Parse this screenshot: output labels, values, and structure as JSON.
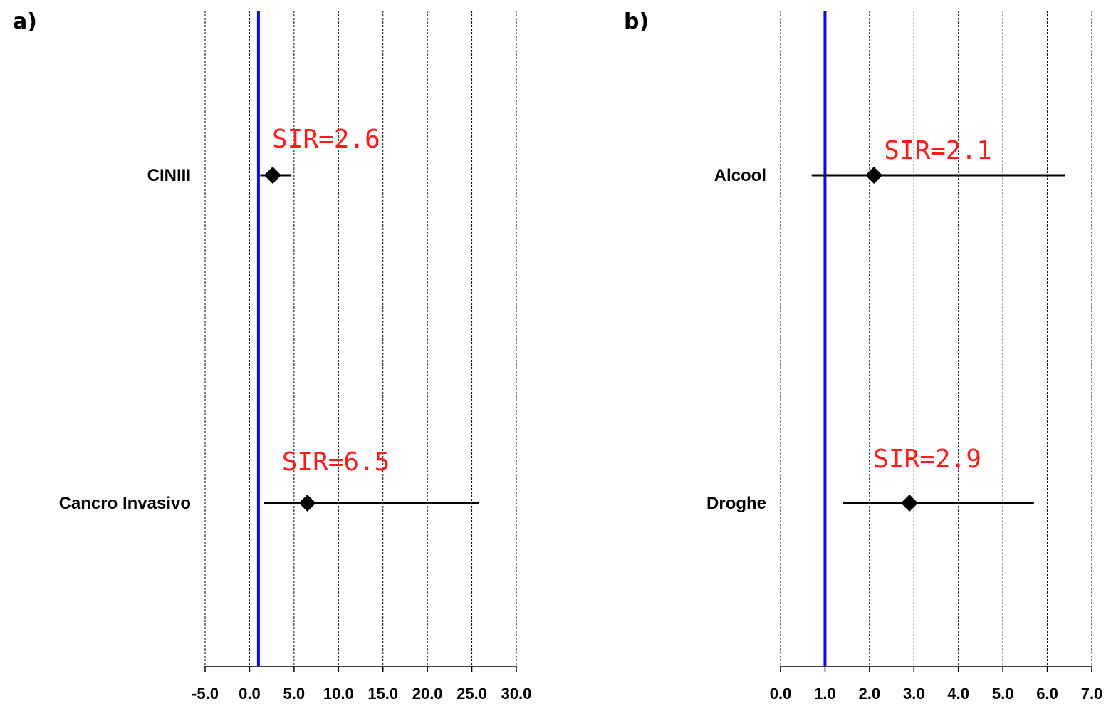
{
  "chart_data": [
    {
      "panel_label": "a)",
      "type": "forest",
      "xlim": [
        -5.0,
        30.0
      ],
      "xticks": [
        -5.0,
        0.0,
        5.0,
        10.0,
        15.0,
        20.0,
        25.0,
        30.0
      ],
      "xtick_labels": [
        "-5.0",
        "0.0",
        "5.0",
        "10.0",
        "15.0",
        "20.0",
        "25.0",
        "30.0"
      ],
      "reference_line": {
        "x": 1.0,
        "color": "#0b0bdd"
      },
      "grid": "vertical dashed",
      "rows": [
        {
          "label": "CINIII",
          "estimate": 2.6,
          "ci_low": 1.2,
          "ci_high": 4.7,
          "annotation": "SIR=2.6"
        },
        {
          "label": "Cancro Invasivo",
          "estimate": 6.5,
          "ci_low": 1.6,
          "ci_high": 25.8,
          "annotation": "SIR=6.5"
        }
      ]
    },
    {
      "panel_label": "b)",
      "type": "forest",
      "xlim": [
        0.0,
        7.0
      ],
      "xticks": [
        0.0,
        1.0,
        2.0,
        3.0,
        4.0,
        5.0,
        6.0,
        7.0
      ],
      "xtick_labels": [
        "0.0",
        "1.0",
        "2.0",
        "3.0",
        "4.0",
        "5.0",
        "6.0",
        "7.0"
      ],
      "reference_line": {
        "x": 1.0,
        "color": "#0b0bdd"
      },
      "grid": "vertical dashed",
      "rows": [
        {
          "label": "Alcool",
          "estimate": 2.1,
          "ci_low": 0.7,
          "ci_high": 6.4,
          "annotation": "SIR=2.1"
        },
        {
          "label": "Droghe",
          "estimate": 2.9,
          "ci_low": 1.4,
          "ci_high": 5.7,
          "annotation": "SIR=2.9"
        }
      ]
    }
  ],
  "colors": {
    "annotation": "#ff1a1a",
    "marker": "#000000",
    "grid": "#000000",
    "reference": "#0b0bdd"
  }
}
